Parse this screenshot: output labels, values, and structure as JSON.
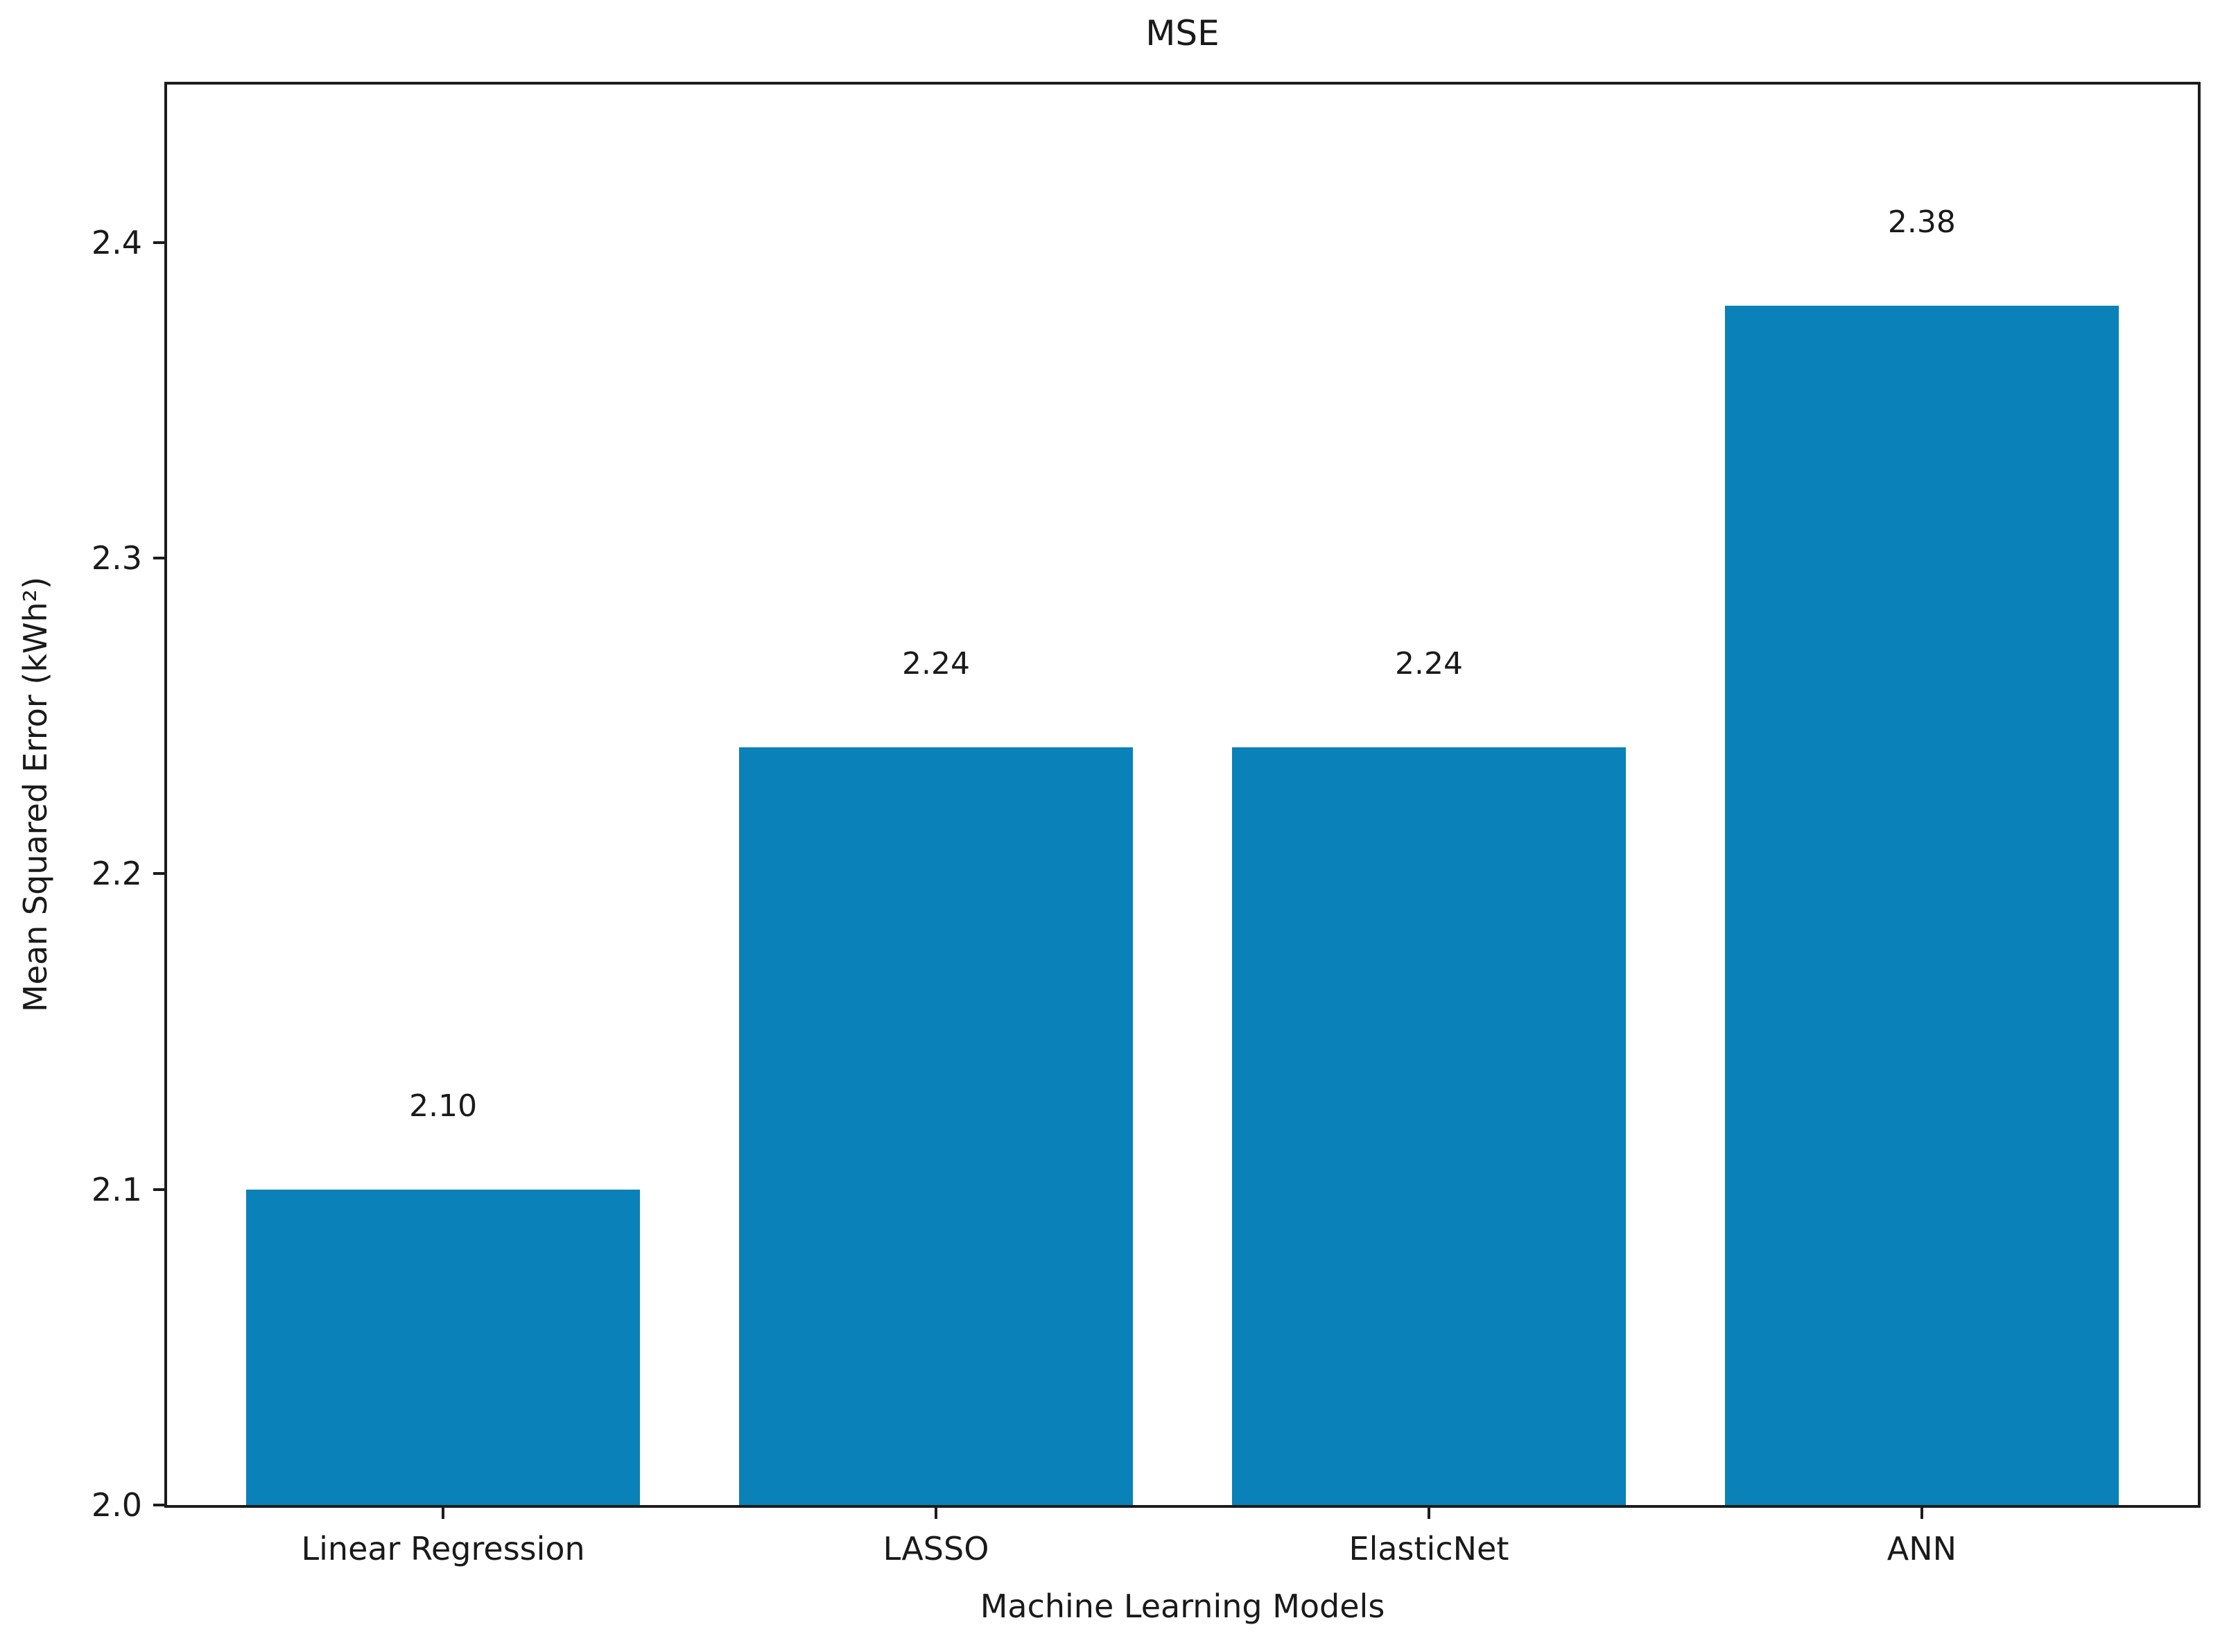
{
  "figure": {
    "background_color": "#ffffff",
    "text_color": "#1a1a1a",
    "spine_color": "#1c1c1c"
  },
  "chart_data": {
    "type": "bar",
    "title": "MSE",
    "xlabel": "Machine Learning Models",
    "ylabel": "Mean Squared Error (kWh²)",
    "categories": [
      "Linear Regression",
      "LASSO",
      "ElasticNet",
      "ANN"
    ],
    "values": [
      2.1,
      2.24,
      2.24,
      2.38
    ],
    "bar_labels": [
      "2.10",
      "2.24",
      "2.24",
      "2.38"
    ],
    "bar_color": "#0a81b8",
    "ylim": [
      2.0,
      2.45
    ],
    "yticks": [
      2.0,
      2.1,
      2.2,
      2.3,
      2.4
    ],
    "ytick_labels": [
      "2.0",
      "2.1",
      "2.2",
      "2.3",
      "2.4"
    ],
    "grid": false,
    "legend_position": "none"
  }
}
